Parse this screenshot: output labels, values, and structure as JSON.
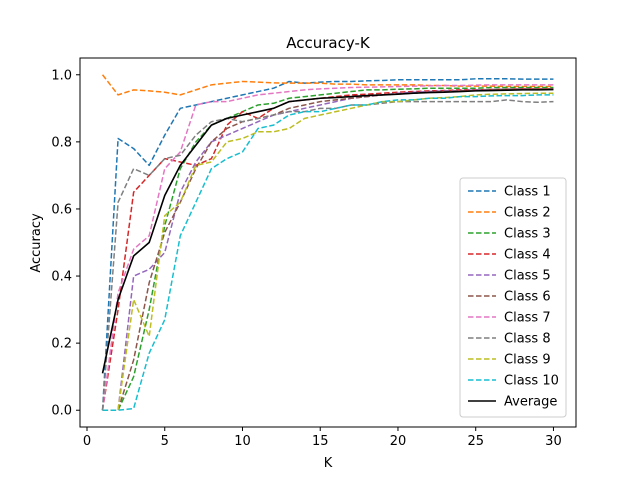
{
  "chart_data": {
    "type": "line",
    "title": "Accuracy-K",
    "xlabel": "K",
    "ylabel": "Accuracy",
    "xlim": [
      -0.45,
      31.45
    ],
    "ylim": [
      -0.05,
      1.05
    ],
    "xticks": [
      0,
      5,
      10,
      15,
      20,
      25,
      30
    ],
    "xtick_labels": [
      "0",
      "5",
      "10",
      "15",
      "20",
      "25",
      "30"
    ],
    "yticks": [
      0.0,
      0.2,
      0.4,
      0.6,
      0.8,
      1.0
    ],
    "ytick_labels": [
      "0.0",
      "0.2",
      "0.4",
      "0.6",
      "0.8",
      "1.0"
    ],
    "grid": false,
    "legend_position": "lower-right",
    "x": [
      1,
      2,
      3,
      4,
      5,
      6,
      7,
      8,
      9,
      10,
      11,
      12,
      13,
      14,
      15,
      16,
      17,
      18,
      19,
      20,
      21,
      22,
      23,
      24,
      25,
      26,
      27,
      28,
      29,
      30
    ],
    "series": [
      {
        "name": "Class 1",
        "color": "#1f77b4",
        "style": "dashed",
        "values": [
          0.0,
          0.81,
          0.78,
          0.73,
          0.82,
          0.9,
          0.91,
          0.92,
          0.93,
          0.94,
          0.95,
          0.96,
          0.98,
          0.975,
          0.978,
          0.98,
          0.98,
          0.982,
          0.983,
          0.985,
          0.985,
          0.985,
          0.985,
          0.985,
          0.988,
          0.988,
          0.988,
          0.987,
          0.987,
          0.987
        ]
      },
      {
        "name": "Class 2",
        "color": "#ff7f0e",
        "style": "dashed",
        "values": [
          1.0,
          0.94,
          0.955,
          0.952,
          0.948,
          0.94,
          0.955,
          0.97,
          0.975,
          0.98,
          0.978,
          0.976,
          0.975,
          0.975,
          0.975,
          0.972,
          0.972,
          0.97,
          0.97,
          0.97,
          0.97,
          0.968,
          0.968,
          0.966,
          0.966,
          0.966,
          0.965,
          0.965,
          0.965,
          0.965
        ]
      },
      {
        "name": "Class 3",
        "color": "#2ca02c",
        "style": "dashed",
        "values": [
          0.0,
          0.0,
          0.1,
          0.3,
          0.55,
          0.72,
          0.8,
          0.85,
          0.87,
          0.89,
          0.91,
          0.915,
          0.93,
          0.935,
          0.94,
          0.945,
          0.95,
          0.955,
          0.955,
          0.957,
          0.958,
          0.96,
          0.96,
          0.96,
          0.96,
          0.962,
          0.962,
          0.962,
          0.962,
          0.962
        ]
      },
      {
        "name": "Class 4",
        "color": "#d62728",
        "style": "dashed",
        "values": [
          0.0,
          0.3,
          0.65,
          0.7,
          0.75,
          0.74,
          0.73,
          0.75,
          0.85,
          0.89,
          0.87,
          0.9,
          0.92,
          0.925,
          0.93,
          0.935,
          0.94,
          0.942,
          0.945,
          0.948,
          0.95,
          0.952,
          0.953,
          0.955,
          0.955,
          0.956,
          0.957,
          0.958,
          0.958,
          0.958
        ]
      },
      {
        "name": "Class 5",
        "color": "#9467bd",
        "style": "dashed",
        "values": [
          0.0,
          0.0,
          0.4,
          0.42,
          0.47,
          0.65,
          0.74,
          0.8,
          0.82,
          0.84,
          0.86,
          0.88,
          0.89,
          0.9,
          0.91,
          0.92,
          0.93,
          0.935,
          0.94,
          0.945,
          0.948,
          0.95,
          0.952,
          0.953,
          0.955,
          0.956,
          0.957,
          0.958,
          0.958,
          0.958
        ]
      },
      {
        "name": "Class 6",
        "color": "#8c564b",
        "style": "dashed",
        "values": [
          0.0,
          0.0,
          0.15,
          0.38,
          0.53,
          0.62,
          0.72,
          0.8,
          0.84,
          0.86,
          0.87,
          0.88,
          0.9,
          0.91,
          0.92,
          0.925,
          0.93,
          0.935,
          0.94,
          0.943,
          0.945,
          0.948,
          0.95,
          0.952,
          0.953,
          0.955,
          0.956,
          0.957,
          0.958,
          0.958
        ]
      },
      {
        "name": "Class 7",
        "color": "#e377c2",
        "style": "dashed",
        "values": [
          0.0,
          0.35,
          0.48,
          0.52,
          0.72,
          0.77,
          0.91,
          0.92,
          0.92,
          0.93,
          0.94,
          0.945,
          0.95,
          0.955,
          0.958,
          0.96,
          0.962,
          0.963,
          0.964,
          0.965,
          0.966,
          0.967,
          0.968,
          0.968,
          0.969,
          0.97,
          0.97,
          0.97,
          0.97,
          0.97
        ]
      },
      {
        "name": "Class 8",
        "color": "#7f7f7f",
        "style": "dashed",
        "values": [
          0.0,
          0.62,
          0.72,
          0.7,
          0.75,
          0.76,
          0.82,
          0.86,
          0.87,
          0.86,
          0.87,
          0.88,
          0.89,
          0.89,
          0.9,
          0.9,
          0.91,
          0.91,
          0.915,
          0.92,
          0.92,
          0.92,
          0.92,
          0.92,
          0.92,
          0.92,
          0.925,
          0.92,
          0.918,
          0.92
        ]
      },
      {
        "name": "Class 9",
        "color": "#bcbd22",
        "style": "dashed",
        "values": [
          0.0,
          0.0,
          0.33,
          0.22,
          0.58,
          0.62,
          0.73,
          0.74,
          0.8,
          0.81,
          0.83,
          0.83,
          0.84,
          0.87,
          0.88,
          0.89,
          0.9,
          0.91,
          0.92,
          0.92,
          0.925,
          0.93,
          0.932,
          0.935,
          0.94,
          0.942,
          0.943,
          0.944,
          0.945,
          0.945
        ]
      },
      {
        "name": "Class 10",
        "color": "#17becf",
        "style": "dashed",
        "values": [
          0.0,
          0.0,
          0.005,
          0.17,
          0.27,
          0.52,
          0.62,
          0.72,
          0.75,
          0.77,
          0.84,
          0.85,
          0.88,
          0.89,
          0.89,
          0.9,
          0.91,
          0.91,
          0.92,
          0.925,
          0.925,
          0.93,
          0.93,
          0.935,
          0.935,
          0.937,
          0.938,
          0.938,
          0.94,
          0.94
        ]
      },
      {
        "name": "Average",
        "color": "#000000",
        "style": "solid",
        "values": [
          0.11,
          0.33,
          0.46,
          0.5,
          0.64,
          0.73,
          0.79,
          0.85,
          0.87,
          0.88,
          0.89,
          0.9,
          0.92,
          0.925,
          0.93,
          0.932,
          0.935,
          0.938,
          0.94,
          0.942,
          0.945,
          0.947,
          0.948,
          0.95,
          0.952,
          0.953,
          0.954,
          0.955,
          0.955,
          0.956
        ]
      }
    ]
  }
}
